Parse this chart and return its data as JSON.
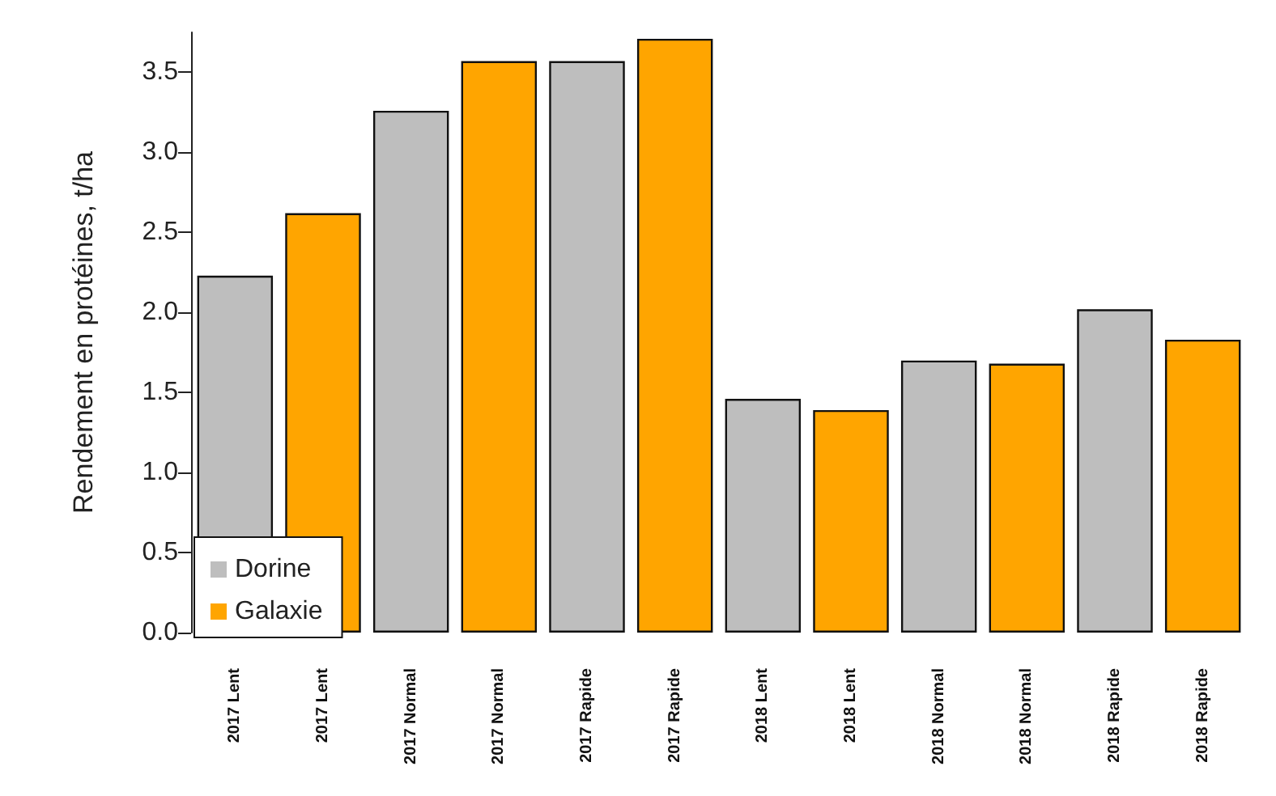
{
  "chart_data": {
    "type": "bar",
    "ylabel": "Rendement en protéines, t/ha",
    "categories": [
      "2017 Lent",
      "2017 Lent",
      "2017 Normal",
      "2017 Normal",
      "2017 Rapide",
      "2017 Rapide",
      "2018 Lent",
      "2018 Lent",
      "2018 Normal",
      "2018 Normal",
      "2018 Rapide",
      "2018 Rapide"
    ],
    "series": [
      {
        "name": "Dorine",
        "color": "#bebebe",
        "values": [
          2.23,
          null,
          3.26,
          null,
          3.57,
          null,
          1.46,
          null,
          1.7,
          null,
          2.02,
          null
        ]
      },
      {
        "name": "Galaxie",
        "color": "#ffa500",
        "values": [
          null,
          2.62,
          null,
          3.57,
          null,
          3.71,
          null,
          1.39,
          null,
          1.68,
          null,
          1.83
        ]
      }
    ],
    "ylim": [
      0,
      3.75
    ],
    "yticks": [
      {
        "value": 0,
        "label": "0.0"
      },
      0.5,
      {
        "value": 1,
        "label": "1.0"
      },
      1.5,
      {
        "value": 2,
        "label": "2.0"
      },
      2.5,
      {
        "value": 3,
        "label": "3.0"
      },
      3.5
    ],
    "grid": false,
    "legend": "bottom left"
  }
}
